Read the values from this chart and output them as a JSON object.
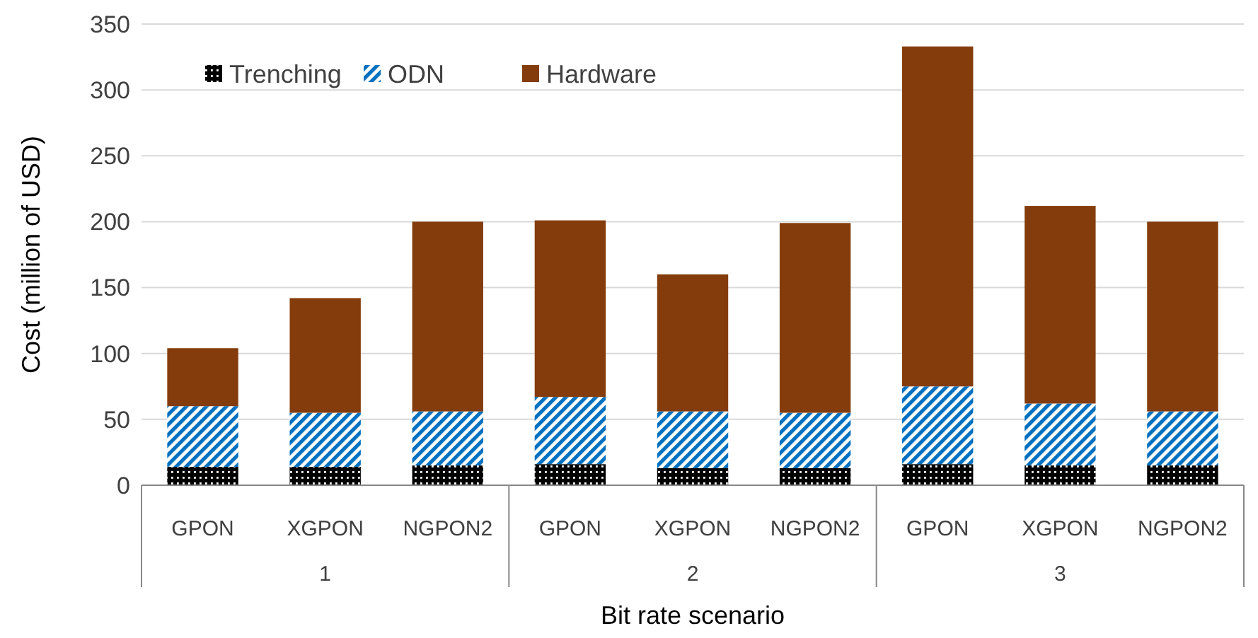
{
  "chart_data": {
    "type": "bar",
    "stacked": true,
    "xlabel": "Bit rate scenario",
    "ylabel": "Cost (million of USD)",
    "categories": [
      "GPON",
      "XGPON",
      "NGPON2",
      "GPON",
      "XGPON",
      "NGPON2",
      "GPON",
      "XGPON",
      "NGPON2"
    ],
    "annotations": [
      "1",
      "2",
      "3"
    ],
    "series": [
      {
        "name": "Trenching",
        "color": "#000000",
        "values": [
          14,
          14,
          15,
          16,
          13,
          13,
          16,
          15,
          15
        ]
      },
      {
        "name": "ODN",
        "color": "#0070c0",
        "values": [
          46,
          41,
          41,
          51,
          43,
          42,
          59,
          47,
          41
        ]
      },
      {
        "name": "Hardware",
        "color": "#843c0c",
        "values": [
          44,
          87,
          144,
          134,
          104,
          144,
          258,
          150,
          144
        ]
      }
    ],
    "ylim": [
      0,
      350
    ],
    "yticks": [
      0,
      50,
      100,
      150,
      200,
      250,
      300,
      350
    ],
    "grid": "y",
    "legend": "top left"
  }
}
